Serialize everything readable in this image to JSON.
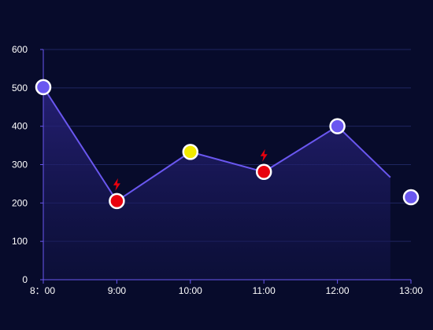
{
  "chart_data": {
    "type": "line",
    "x": [
      "8：00",
      "9:00",
      "10:00",
      "11:00",
      "12:00",
      "13:00"
    ],
    "series": [
      {
        "values": [
          502,
          205,
          333,
          281,
          400,
          215
        ],
        "point_status": [
          "normal",
          "alarm",
          "warning",
          "alarm",
          "normal",
          "normal"
        ]
      }
    ],
    "ylim": [
      0,
      600
    ],
    "yticks": [
      0,
      100,
      200,
      300,
      400,
      500,
      600
    ],
    "grid": true,
    "colors": {
      "background": "#070b2b",
      "line": "#6a57f0",
      "normal_marker": "#6a57f0",
      "alarm_marker": "#e8000d",
      "warning_marker": "#f2e900",
      "alarm_icon": "#e8000d",
      "gridline": "#1f2660",
      "axis": "#6a57f0"
    },
    "icons": {
      "alarm": "lightning-bolt-icon"
    }
  }
}
